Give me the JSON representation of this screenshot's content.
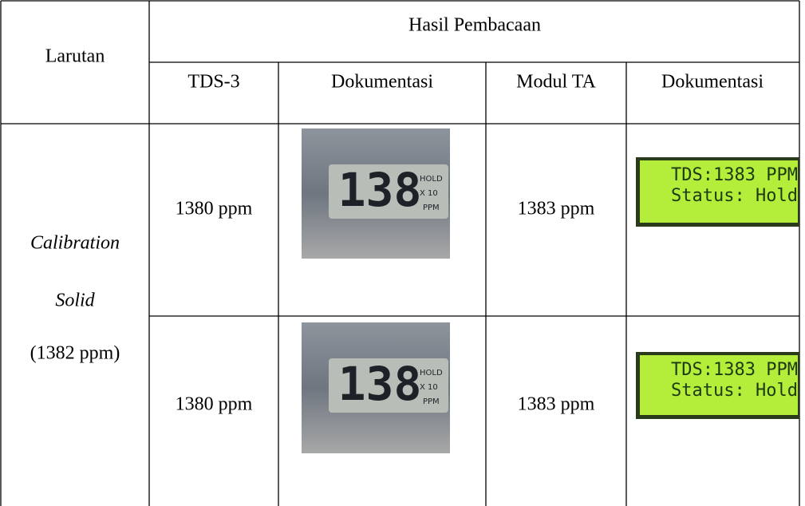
{
  "table": {
    "header": {
      "larutan": "Larutan",
      "group": "Hasil Pembacaan",
      "columns": [
        "TDS-3",
        "Dokumentasi",
        "Modul TA",
        "Dokumentasi"
      ]
    },
    "sample": {
      "line1": "Calibration",
      "line2": "Solid",
      "line3": "(1382 ppm)"
    },
    "rows": [
      {
        "tds3": "1380 ppm",
        "photo": {
          "digits": "138",
          "hold": "HOLD",
          "multiplier": "X 10",
          "unit": "PPM"
        },
        "modul": "1383 ppm",
        "lcd": [
          "TDS:1383 PPM",
          "Status: Hold"
        ]
      },
      {
        "tds3": "1380 ppm",
        "photo": {
          "digits": "138",
          "hold": "HOLD",
          "multiplier": "X 10",
          "unit": "PPM"
        },
        "modul": "1383 ppm",
        "lcd": [
          "TDS:1383 PPM",
          "Status: Hold"
        ]
      }
    ]
  }
}
